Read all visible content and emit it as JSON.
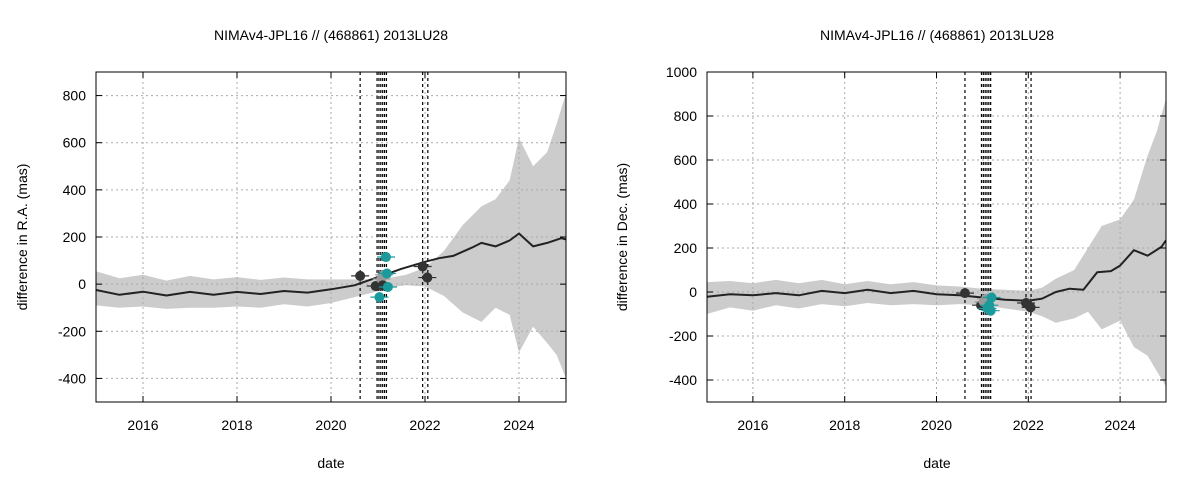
{
  "chart_data": [
    {
      "type": "line",
      "title": "NIMAv4-JPL16 // (468861) 2013LU28",
      "xlabel": "date",
      "ylabel": "difference in R.A. (mas)",
      "xlim": [
        2015.0,
        2025.0
      ],
      "ylim": [
        -500,
        900
      ],
      "xticks": [
        "2016",
        "2018",
        "2020",
        "2022",
        "2024"
      ],
      "yticks": [
        "-400",
        "-200",
        "0",
        "200",
        "400",
        "600",
        "800"
      ],
      "grid": true,
      "colors": {
        "line": "#222222",
        "band": "#cccccc",
        "obs_dark": "#333333",
        "obs_teal": "#1a9a9a",
        "obs_gray": "#999999"
      },
      "mean_curve": {
        "x": [
          2015.0,
          2015.5,
          2016.0,
          2016.5,
          2017.0,
          2017.5,
          2018.0,
          2018.5,
          2019.0,
          2019.5,
          2020.0,
          2020.5,
          2021.0,
          2021.5,
          2022.0,
          2022.3,
          2022.6,
          2023.0,
          2023.2,
          2023.5,
          2023.8,
          2024.0,
          2024.3,
          2024.6,
          2024.9,
          2025.0
        ],
        "y": [
          -25,
          -45,
          -32,
          -48,
          -33,
          -45,
          -33,
          -42,
          -29,
          -36,
          -22,
          -5,
          30,
          65,
          95,
          110,
          120,
          155,
          175,
          160,
          185,
          215,
          160,
          175,
          195,
          190
        ]
      },
      "uncertainty_band": {
        "x": [
          2015.0,
          2015.5,
          2016.0,
          2016.5,
          2017.0,
          2017.5,
          2018.0,
          2018.5,
          2019.0,
          2019.5,
          2020.0,
          2020.5,
          2021.0,
          2021.2,
          2021.6,
          2022.0,
          2022.4,
          2022.8,
          2023.2,
          2023.5,
          2023.8,
          2024.0,
          2024.3,
          2024.6,
          2024.8,
          2025.0
        ],
        "upper": [
          55,
          25,
          40,
          15,
          35,
          20,
          30,
          18,
          28,
          20,
          20,
          20,
          20,
          25,
          40,
          70,
          140,
          250,
          330,
          360,
          440,
          620,
          500,
          560,
          680,
          810
        ],
        "lower": [
          -90,
          -100,
          -95,
          -105,
          -100,
          -100,
          -95,
          -100,
          -85,
          -95,
          -80,
          -55,
          -30,
          -15,
          -5,
          -10,
          -50,
          -120,
          -160,
          -100,
          -130,
          -290,
          -180,
          -250,
          -300,
          -400
        ]
      },
      "reference_dates": [
        2020.62,
        2020.98,
        2021.02,
        2021.06,
        2021.1,
        2021.14,
        2021.18,
        2021.95,
        2022.06
      ],
      "observations": [
        {
          "x": 2020.62,
          "y": 35,
          "err": 25,
          "group": "dark"
        },
        {
          "x": 2020.95,
          "y": -8,
          "err": 20,
          "group": "dark"
        },
        {
          "x": 2021.03,
          "y": -55,
          "err": 20,
          "group": "teal"
        },
        {
          "x": 2021.07,
          "y": 22,
          "err": 25,
          "group": "gray"
        },
        {
          "x": 2021.1,
          "y": -5,
          "err": 20,
          "group": "dark"
        },
        {
          "x": 2021.13,
          "y": 40,
          "err": 20,
          "group": "gray"
        },
        {
          "x": 2021.17,
          "y": 115,
          "err": 20,
          "group": "teal"
        },
        {
          "x": 2021.19,
          "y": 45,
          "err": 20,
          "group": "teal"
        },
        {
          "x": 2021.21,
          "y": -12,
          "err": 20,
          "group": "teal"
        },
        {
          "x": 2021.95,
          "y": 75,
          "err": 30,
          "group": "dark"
        },
        {
          "x": 2022.05,
          "y": 28,
          "err": 25,
          "group": "dark"
        }
      ]
    },
    {
      "type": "line",
      "title": "NIMAv4-JPL16 // (468861) 2013LU28",
      "xlabel": "date",
      "ylabel": "difference in Dec. (mas)",
      "xlim": [
        2015.0,
        2025.0
      ],
      "ylim": [
        -500,
        1000
      ],
      "xticks": [
        "2016",
        "2018",
        "2020",
        "2022",
        "2024"
      ],
      "yticks": [
        "-400",
        "-200",
        "0",
        "200",
        "400",
        "600",
        "800",
        "1000"
      ],
      "grid": true,
      "colors": {
        "line": "#222222",
        "band": "#cccccc",
        "obs_dark": "#333333",
        "obs_teal": "#1a9a9a",
        "obs_gray": "#999999"
      },
      "mean_curve": {
        "x": [
          2015.0,
          2015.5,
          2016.0,
          2016.5,
          2017.0,
          2017.5,
          2018.0,
          2018.5,
          2019.0,
          2019.5,
          2020.0,
          2020.5,
          2021.0,
          2021.5,
          2022.0,
          2022.3,
          2022.6,
          2022.9,
          2023.2,
          2023.5,
          2023.8,
          2024.0,
          2024.3,
          2024.6,
          2024.9,
          2025.0
        ],
        "y": [
          -22,
          -10,
          -15,
          -5,
          -15,
          5,
          -5,
          10,
          -5,
          5,
          -10,
          -15,
          -25,
          -35,
          -40,
          -30,
          0,
          15,
          10,
          90,
          95,
          120,
          190,
          165,
          205,
          235
        ]
      },
      "uncertainty_band": {
        "x": [
          2015.0,
          2015.5,
          2016.0,
          2016.5,
          2017.0,
          2017.5,
          2018.0,
          2018.5,
          2019.0,
          2019.5,
          2020.0,
          2020.5,
          2021.0,
          2021.5,
          2022.0,
          2022.3,
          2022.6,
          2023.0,
          2023.3,
          2023.6,
          2024.0,
          2024.3,
          2024.6,
          2024.8,
          2025.0
        ],
        "upper": [
          45,
          50,
          40,
          55,
          40,
          55,
          35,
          50,
          35,
          45,
          30,
          25,
          15,
          10,
          5,
          20,
          60,
          100,
          200,
          300,
          330,
          420,
          620,
          730,
          880
        ],
        "lower": [
          -100,
          -70,
          -85,
          -60,
          -75,
          -55,
          -65,
          -50,
          -60,
          -55,
          -60,
          -55,
          -60,
          -75,
          -90,
          -110,
          -140,
          -120,
          -90,
          -170,
          -130,
          -250,
          -290,
          -360,
          -430
        ]
      },
      "reference_dates": [
        2020.62,
        2020.98,
        2021.02,
        2021.06,
        2021.1,
        2021.14,
        2021.18,
        2021.95,
        2022.06
      ],
      "observations": [
        {
          "x": 2020.62,
          "y": -5,
          "err": 15,
          "group": "dark"
        },
        {
          "x": 2020.97,
          "y": -60,
          "err": 15,
          "group": "dark"
        },
        {
          "x": 2021.03,
          "y": -45,
          "err": 15,
          "group": "gray"
        },
        {
          "x": 2021.08,
          "y": -30,
          "err": 15,
          "group": "gray"
        },
        {
          "x": 2021.11,
          "y": -75,
          "err": 15,
          "group": "teal"
        },
        {
          "x": 2021.15,
          "y": -60,
          "err": 15,
          "group": "teal"
        },
        {
          "x": 2021.18,
          "y": -85,
          "err": 15,
          "group": "teal"
        },
        {
          "x": 2021.2,
          "y": -25,
          "err": 15,
          "group": "teal"
        },
        {
          "x": 2021.95,
          "y": -50,
          "err": 25,
          "group": "dark"
        },
        {
          "x": 2022.05,
          "y": -70,
          "err": 40,
          "group": "dark"
        }
      ]
    }
  ]
}
